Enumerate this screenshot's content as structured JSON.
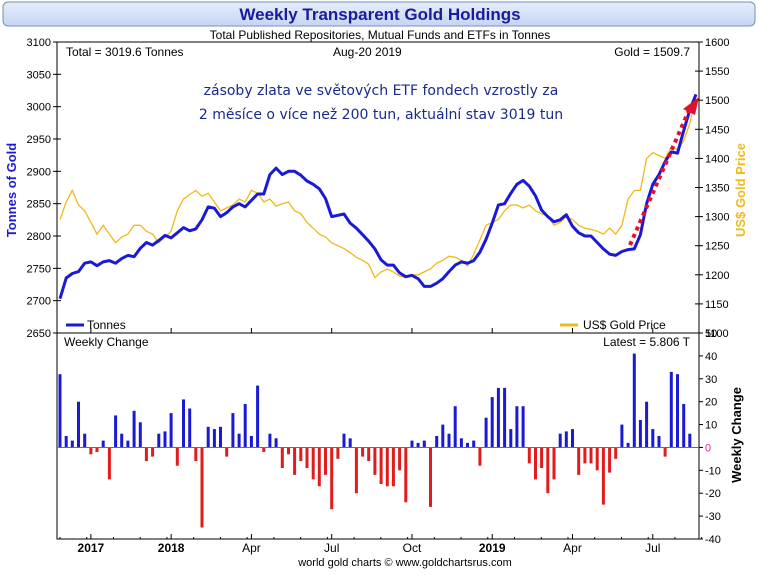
{
  "header": {
    "title": "Weekly Transparent Gold Holdings",
    "subtitle": "Total Published Repositories, Mutual Funds and ETFs in Tonnes"
  },
  "footer": {
    "credit": "world gold charts © www.goldchartsrus.com"
  },
  "colors": {
    "tonnes": "#1a1ad6",
    "gold_price": "#f0b91c",
    "positive_bar": "#1a1ad6",
    "negative_bar": "#e01c1c",
    "header_bg": "#cfe0f7",
    "title_text": "#1a1aa0",
    "arrow": "#e0112e",
    "annotation_text": "#1a2a8a",
    "zero_line": "#e02a9a"
  },
  "chart_data": [
    {
      "type": "line",
      "info": {
        "total": "Total = 3019.6 Tonnes",
        "date": "Aug-20  2019",
        "gold": "Gold = 1509.7"
      },
      "annotation": [
        "zásoby zlata ve světových ETF fondech vzrostly za",
        "2 měsíce o více než 200 tun, aktuální stav 3019 tun"
      ],
      "ylabel_left": "Tonnes of Gold",
      "ylabel_right": "US$ Gold Price",
      "ylim_left": [
        2650,
        3100
      ],
      "ylim_right": [
        1100,
        1600
      ],
      "yticks_left": [
        2650,
        2700,
        2750,
        2800,
        2850,
        2900,
        2950,
        3000,
        3050,
        3100
      ],
      "yticks_right": [
        1100,
        1150,
        1200,
        1250,
        1300,
        1350,
        1400,
        1450,
        1500,
        1550,
        1600
      ],
      "x_tick_labels": [
        {
          "label": "2017",
          "week": 5,
          "bold": true
        },
        {
          "label": "2018",
          "week": 18,
          "bold": true
        },
        {
          "label": "Apr",
          "week": 31,
          "bold": false
        },
        {
          "label": "Jul",
          "week": 44,
          "bold": false
        },
        {
          "label": "Oct",
          "week": 57,
          "bold": false
        },
        {
          "label": "2019",
          "week": 70,
          "bold": true
        },
        {
          "label": "Apr",
          "week": 83,
          "bold": false
        },
        {
          "label": "Jul",
          "week": 96,
          "bold": false
        }
      ],
      "weeks_total": 104,
      "legend": [
        {
          "label": "Tonnes",
          "position": "bottom-left"
        },
        {
          "label": "US$ Gold Price",
          "position": "bottom-right"
        }
      ],
      "series": [
        {
          "name": "Tonnes",
          "axis": "left",
          "values": [
            2703,
            2735,
            2742,
            2745,
            2758,
            2760,
            2754,
            2760,
            2762,
            2758,
            2765,
            2770,
            2768,
            2781,
            2790,
            2786,
            2793,
            2801,
            2797,
            2805,
            2813,
            2808,
            2811,
            2825,
            2845,
            2843,
            2830,
            2836,
            2845,
            2850,
            2845,
            2855,
            2865,
            2865,
            2895,
            2905,
            2895,
            2900,
            2900,
            2894,
            2885,
            2880,
            2873,
            2858,
            2830,
            2832,
            2834,
            2820,
            2812,
            2802,
            2792,
            2780,
            2763,
            2755,
            2755,
            2743,
            2737,
            2739,
            2734,
            2722,
            2722,
            2727,
            2734,
            2745,
            2755,
            2760,
            2758,
            2762,
            2775,
            2795,
            2820,
            2848,
            2850,
            2866,
            2880,
            2886,
            2877,
            2862,
            2840,
            2830,
            2822,
            2825,
            2833,
            2815,
            2805,
            2800,
            2800,
            2790,
            2780,
            2772,
            2770,
            2776,
            2779,
            2780,
            2802,
            2850,
            2880,
            2895,
            2915,
            2930,
            2928,
            2963,
            2995,
            3019
          ]
        },
        {
          "name": "US$ Gold Price",
          "axis": "right",
          "values": [
            1295,
            1325,
            1345,
            1320,
            1310,
            1290,
            1270,
            1285,
            1270,
            1255,
            1265,
            1270,
            1285,
            1285,
            1275,
            1270,
            1255,
            1265,
            1275,
            1310,
            1330,
            1338,
            1345,
            1335,
            1340,
            1325,
            1310,
            1315,
            1320,
            1330,
            1325,
            1345,
            1340,
            1325,
            1330,
            1318,
            1322,
            1325,
            1310,
            1305,
            1290,
            1280,
            1270,
            1265,
            1255,
            1250,
            1245,
            1238,
            1230,
            1225,
            1218,
            1195,
            1205,
            1210,
            1205,
            1198,
            1195,
            1200,
            1200,
            1205,
            1210,
            1220,
            1225,
            1232,
            1230,
            1225,
            1215,
            1235,
            1260,
            1285,
            1290,
            1295,
            1310,
            1320,
            1320,
            1315,
            1320,
            1310,
            1305,
            1300,
            1285,
            1290,
            1300,
            1295,
            1285,
            1280,
            1278,
            1275,
            1270,
            1280,
            1270,
            1285,
            1330,
            1345,
            1345,
            1400,
            1410,
            1405,
            1400,
            1420,
            1415,
            1430,
            1460,
            1510
          ]
        }
      ]
    },
    {
      "type": "bar",
      "title": "Weekly Change",
      "latest": "Latest = 5.806 T",
      "ylabel": "Weekly Change",
      "ylim": [
        -40,
        50
      ],
      "yticks": [
        -40,
        -30,
        -20,
        -10,
        0,
        10,
        20,
        30,
        40,
        50
      ],
      "values": [
        32,
        5,
        3,
        20,
        6,
        -3,
        -2,
        3,
        -14,
        14,
        6,
        3,
        16,
        11,
        -6,
        -4,
        6,
        7,
        15,
        -8,
        21,
        17,
        -6,
        -35,
        9,
        8,
        9,
        -4,
        15,
        6,
        19,
        5,
        27,
        -2,
        6,
        4,
        -9,
        -3,
        -12,
        -6,
        -9,
        -14,
        -17,
        -12,
        -27,
        -5,
        6,
        4,
        -20,
        -4,
        -6,
        -12,
        -16,
        -17,
        -17,
        -10,
        -24,
        3,
        2,
        3,
        -26,
        5,
        10,
        6,
        18,
        4,
        2,
        3,
        -8,
        13,
        22,
        26,
        26,
        8,
        18,
        18,
        -7,
        -14,
        -9,
        -20,
        -14,
        6,
        7,
        8,
        -12,
        -7,
        -7,
        -10,
        -25,
        -11,
        -5,
        10,
        2,
        41,
        12,
        20,
        8,
        5,
        -4,
        33,
        32,
        19,
        6
      ]
    }
  ]
}
